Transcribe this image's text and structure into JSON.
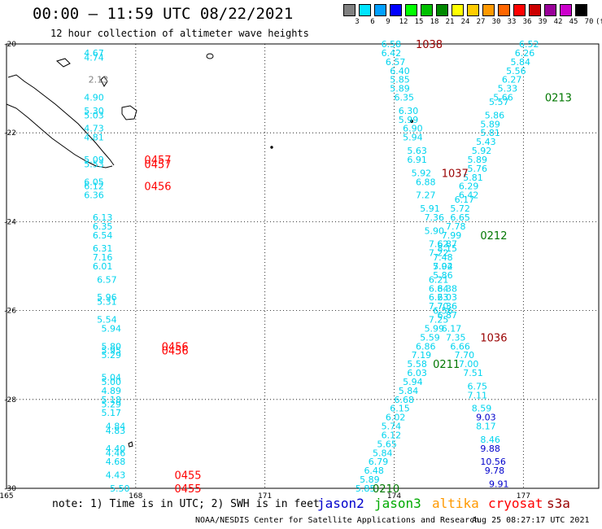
{
  "header": {
    "title": "00:00 — 11:59 UTC 08/22/2021",
    "subtitle": "12 hour collection of altimeter wave heights"
  },
  "color_scale": {
    "unit": "(ft)",
    "steps": [
      {
        "label": "3",
        "color": "#808080"
      },
      {
        "label": "6",
        "color": "#00e5ff"
      },
      {
        "label": "9",
        "color": "#00a0ff"
      },
      {
        "label": "12",
        "color": "#0000ff"
      },
      {
        "label": "15",
        "color": "#00ff00"
      },
      {
        "label": "18",
        "color": "#00c000"
      },
      {
        "label": "21",
        "color": "#008800"
      },
      {
        "label": "24",
        "color": "#ffff00"
      },
      {
        "label": "27",
        "color": "#ffcc00"
      },
      {
        "label": "30",
        "color": "#ff9900"
      },
      {
        "label": "33",
        "color": "#ff6600"
      },
      {
        "label": "36",
        "color": "#ff0000"
      },
      {
        "label": "39",
        "color": "#cc0000"
      },
      {
        "label": "42",
        "color": "#990099"
      },
      {
        "label": "45",
        "color": "#cc00cc"
      },
      {
        "label": "70",
        "color": "#000000"
      }
    ]
  },
  "map": {
    "lon_labels": [
      "165",
      "168",
      "171",
      "174",
      "177"
    ],
    "lat_labels": [
      "-20",
      "-22",
      "-24",
      "-26",
      "-28",
      "-30"
    ],
    "colors": {
      "swh_cyan": "#00d4ee",
      "swh_gray": "#808080",
      "swh_blue": "#0000cc",
      "time_red": "#ff0000",
      "time_darkred": "#990000",
      "time_green": "#007700"
    }
  },
  "swh_labels": [
    {
      "t": "4.67",
      "lon": 166.8,
      "lat": -20.2,
      "c": "cyan"
    },
    {
      "t": "4.74",
      "lon": 166.8,
      "lat": -20.3,
      "c": "cyan"
    },
    {
      "t": "2.13",
      "lon": 166.9,
      "lat": -20.8,
      "c": "gray"
    },
    {
      "t": "4.90",
      "lon": 166.8,
      "lat": -21.2,
      "c": "cyan"
    },
    {
      "t": "5.30",
      "lon": 166.8,
      "lat": -21.5,
      "c": "cyan"
    },
    {
      "t": "5.03",
      "lon": 166.8,
      "lat": -21.6,
      "c": "cyan"
    },
    {
      "t": "4.73",
      "lon": 166.8,
      "lat": -21.9,
      "c": "cyan"
    },
    {
      "t": "4.81",
      "lon": 166.8,
      "lat": -22.1,
      "c": "cyan"
    },
    {
      "t": "5.09",
      "lon": 166.8,
      "lat": -22.6,
      "c": "cyan"
    },
    {
      "t": "5.53",
      "lon": 166.8,
      "lat": -22.7,
      "c": "cyan"
    },
    {
      "t": "6.05",
      "lon": 166.8,
      "lat": -23.1,
      "c": "cyan"
    },
    {
      "t": "6.12",
      "lon": 166.8,
      "lat": -23.2,
      "c": "cyan"
    },
    {
      "t": "6.36",
      "lon": 166.8,
      "lat": -23.4,
      "c": "cyan"
    },
    {
      "t": "6.13",
      "lon": 167.0,
      "lat": -23.9,
      "c": "cyan"
    },
    {
      "t": "6.35",
      "lon": 167.0,
      "lat": -24.1,
      "c": "cyan"
    },
    {
      "t": "6.54",
      "lon": 167.0,
      "lat": -24.3,
      "c": "cyan"
    },
    {
      "t": "6.31",
      "lon": 167.0,
      "lat": -24.6,
      "c": "cyan"
    },
    {
      "t": "7.16",
      "lon": 167.0,
      "lat": -24.8,
      "c": "cyan"
    },
    {
      "t": "6.01",
      "lon": 167.0,
      "lat": -25.0,
      "c": "cyan"
    },
    {
      "t": "6.57",
      "lon": 167.1,
      "lat": -25.3,
      "c": "cyan"
    },
    {
      "t": "5.96",
      "lon": 167.1,
      "lat": -25.7,
      "c": "cyan"
    },
    {
      "t": "5.31",
      "lon": 167.1,
      "lat": -25.8,
      "c": "cyan"
    },
    {
      "t": "5.54",
      "lon": 167.1,
      "lat": -26.2,
      "c": "cyan"
    },
    {
      "t": "5.94",
      "lon": 167.2,
      "lat": -26.4,
      "c": "cyan"
    },
    {
      "t": "5.80",
      "lon": 167.2,
      "lat": -26.8,
      "c": "cyan"
    },
    {
      "t": "5.95",
      "lon": 167.2,
      "lat": -26.9,
      "c": "cyan"
    },
    {
      "t": "5.29",
      "lon": 167.2,
      "lat": -27.0,
      "c": "cyan"
    },
    {
      "t": "5.04",
      "lon": 167.2,
      "lat": -27.5,
      "c": "cyan"
    },
    {
      "t": "5.00",
      "lon": 167.2,
      "lat": -27.6,
      "c": "cyan"
    },
    {
      "t": "4.89",
      "lon": 167.2,
      "lat": -27.8,
      "c": "cyan"
    },
    {
      "t": "5.18",
      "lon": 167.2,
      "lat": -28.0,
      "c": "cyan"
    },
    {
      "t": "5.29",
      "lon": 167.2,
      "lat": -28.1,
      "c": "cyan"
    },
    {
      "t": "5.17",
      "lon": 167.2,
      "lat": -28.3,
      "c": "cyan"
    },
    {
      "t": "4.84",
      "lon": 167.3,
      "lat": -28.6,
      "c": "cyan"
    },
    {
      "t": "4.83",
      "lon": 167.3,
      "lat": -28.7,
      "c": "cyan"
    },
    {
      "t": "4.40",
      "lon": 167.3,
      "lat": -29.1,
      "c": "cyan"
    },
    {
      "t": "4.46",
      "lon": 167.3,
      "lat": -29.2,
      "c": "cyan"
    },
    {
      "t": "4.68",
      "lon": 167.3,
      "lat": -29.4,
      "c": "cyan"
    },
    {
      "t": "4.43",
      "lon": 167.3,
      "lat": -29.7,
      "c": "cyan"
    },
    {
      "t": "5.50",
      "lon": 167.4,
      "lat": -30.0,
      "c": "cyan"
    },
    {
      "t": "6.58",
      "lon": 173.7,
      "lat": -20.0,
      "c": "cyan"
    },
    {
      "t": "6.42",
      "lon": 173.7,
      "lat": -20.2,
      "c": "cyan"
    },
    {
      "t": "6.57",
      "lon": 173.8,
      "lat": -20.4,
      "c": "cyan"
    },
    {
      "t": "6.40",
      "lon": 173.9,
      "lat": -20.6,
      "c": "cyan"
    },
    {
      "t": "5.85",
      "lon": 173.9,
      "lat": -20.8,
      "c": "cyan"
    },
    {
      "t": "5.89",
      "lon": 173.9,
      "lat": -21.0,
      "c": "cyan"
    },
    {
      "t": "6.35",
      "lon": 174.0,
      "lat": -21.2,
      "c": "cyan"
    },
    {
      "t": "6.30",
      "lon": 174.1,
      "lat": -21.5,
      "c": "cyan"
    },
    {
      "t": "5.99",
      "lon": 174.1,
      "lat": -21.7,
      "c": "cyan"
    },
    {
      "t": "6.90",
      "lon": 174.2,
      "lat": -21.9,
      "c": "cyan"
    },
    {
      "t": "5.94",
      "lon": 174.2,
      "lat": -22.1,
      "c": "cyan"
    },
    {
      "t": "5.63",
      "lon": 174.3,
      "lat": -22.4,
      "c": "cyan"
    },
    {
      "t": "6.91",
      "lon": 174.3,
      "lat": -22.6,
      "c": "cyan"
    },
    {
      "t": "5.92",
      "lon": 174.4,
      "lat": -22.9,
      "c": "cyan"
    },
    {
      "t": "6.88",
      "lon": 174.5,
      "lat": -23.1,
      "c": "cyan"
    },
    {
      "t": "7.27",
      "lon": 174.5,
      "lat": -23.4,
      "c": "cyan"
    },
    {
      "t": "5.91",
      "lon": 174.6,
      "lat": -23.7,
      "c": "cyan"
    },
    {
      "t": "7.36",
      "lon": 174.7,
      "lat": -23.9,
      "c": "cyan"
    },
    {
      "t": "5.90",
      "lon": 174.7,
      "lat": -24.2,
      "c": "cyan"
    },
    {
      "t": "7.62",
      "lon": 174.8,
      "lat": -24.5,
      "c": "cyan"
    },
    {
      "t": "7.22",
      "lon": 174.8,
      "lat": -24.7,
      "c": "cyan"
    },
    {
      "t": "5.94",
      "lon": 174.9,
      "lat": -25.0,
      "c": "cyan"
    },
    {
      "t": "5.86",
      "lon": 174.9,
      "lat": -25.2,
      "c": "cyan"
    },
    {
      "t": "6.38",
      "lon": 175.0,
      "lat": -25.5,
      "c": "cyan"
    },
    {
      "t": "6.03",
      "lon": 175.0,
      "lat": -25.7,
      "c": "cyan"
    },
    {
      "t": "7.36",
      "lon": 175.0,
      "lat": -25.9,
      "c": "cyan"
    },
    {
      "t": "6.56",
      "lon": 174.9,
      "lat": -26.0,
      "c": "cyan"
    },
    {
      "t": "7.25",
      "lon": 174.8,
      "lat": -26.2,
      "c": "cyan"
    },
    {
      "t": "5.99",
      "lon": 174.7,
      "lat": -26.4,
      "c": "cyan"
    },
    {
      "t": "5.59",
      "lon": 174.6,
      "lat": -26.6,
      "c": "cyan"
    },
    {
      "t": "6.86",
      "lon": 174.5,
      "lat": -26.8,
      "c": "cyan"
    },
    {
      "t": "7.19",
      "lon": 174.4,
      "lat": -27.0,
      "c": "cyan"
    },
    {
      "t": "5.58",
      "lon": 174.3,
      "lat": -27.2,
      "c": "cyan"
    },
    {
      "t": "6.03",
      "lon": 174.3,
      "lat": -27.4,
      "c": "cyan"
    },
    {
      "t": "5.94",
      "lon": 174.2,
      "lat": -27.6,
      "c": "cyan"
    },
    {
      "t": "5.84",
      "lon": 174.1,
      "lat": -27.8,
      "c": "cyan"
    },
    {
      "t": "6.68",
      "lon": 174.0,
      "lat": -28.0,
      "c": "cyan"
    },
    {
      "t": "6.15",
      "lon": 173.9,
      "lat": -28.2,
      "c": "cyan"
    },
    {
      "t": "6.02",
      "lon": 173.8,
      "lat": -28.4,
      "c": "cyan"
    },
    {
      "t": "5.74",
      "lon": 173.7,
      "lat": -28.6,
      "c": "cyan"
    },
    {
      "t": "6.12",
      "lon": 173.7,
      "lat": -28.8,
      "c": "cyan"
    },
    {
      "t": "5.65",
      "lon": 173.6,
      "lat": -29.0,
      "c": "cyan"
    },
    {
      "t": "5.84",
      "lon": 173.5,
      "lat": -29.2,
      "c": "cyan"
    },
    {
      "t": "6.79",
      "lon": 173.4,
      "lat": -29.4,
      "c": "cyan"
    },
    {
      "t": "6.48",
      "lon": 173.3,
      "lat": -29.6,
      "c": "cyan"
    },
    {
      "t": "5.89",
      "lon": 173.2,
      "lat": -29.8,
      "c": "cyan"
    },
    {
      "t": "5.85",
      "lon": 173.1,
      "lat": -30.0,
      "c": "cyan"
    },
    {
      "t": "6.52",
      "lon": 176.9,
      "lat": -20.0,
      "c": "cyan"
    },
    {
      "t": "6.26",
      "lon": 176.8,
      "lat": -20.2,
      "c": "cyan"
    },
    {
      "t": "5.84",
      "lon": 176.7,
      "lat": -20.4,
      "c": "cyan"
    },
    {
      "t": "5.56",
      "lon": 176.6,
      "lat": -20.6,
      "c": "cyan"
    },
    {
      "t": "6.27",
      "lon": 176.5,
      "lat": -20.8,
      "c": "cyan"
    },
    {
      "t": "5.33",
      "lon": 176.4,
      "lat": -21.0,
      "c": "cyan"
    },
    {
      "t": "5.66",
      "lon": 176.3,
      "lat": -21.2,
      "c": "cyan"
    },
    {
      "t": "5.57",
      "lon": 176.2,
      "lat": -21.3,
      "c": "cyan"
    },
    {
      "t": "5.86",
      "lon": 176.1,
      "lat": -21.6,
      "c": "cyan"
    },
    {
      "t": "5.89",
      "lon": 176.0,
      "lat": -21.8,
      "c": "cyan"
    },
    {
      "t": "5.81",
      "lon": 176.0,
      "lat": -22.0,
      "c": "cyan"
    },
    {
      "t": "5.43",
      "lon": 175.9,
      "lat": -22.2,
      "c": "cyan"
    },
    {
      "t": "5.92",
      "lon": 175.8,
      "lat": -22.4,
      "c": "cyan"
    },
    {
      "t": "5.89",
      "lon": 175.7,
      "lat": -22.6,
      "c": "cyan"
    },
    {
      "t": "5.76",
      "lon": 175.7,
      "lat": -22.8,
      "c": "cyan"
    },
    {
      "t": "5.81",
      "lon": 175.6,
      "lat": -23.0,
      "c": "cyan"
    },
    {
      "t": "6.29",
      "lon": 175.5,
      "lat": -23.2,
      "c": "cyan"
    },
    {
      "t": "6.42",
      "lon": 175.5,
      "lat": -23.4,
      "c": "cyan"
    },
    {
      "t": "6.17",
      "lon": 175.4,
      "lat": -23.5,
      "c": "cyan"
    },
    {
      "t": "5.72",
      "lon": 175.3,
      "lat": -23.7,
      "c": "cyan"
    },
    {
      "t": "6.65",
      "lon": 175.3,
      "lat": -23.9,
      "c": "cyan"
    },
    {
      "t": "7.78",
      "lon": 175.2,
      "lat": -24.1,
      "c": "cyan"
    },
    {
      "t": "7.99",
      "lon": 175.1,
      "lat": -24.3,
      "c": "cyan"
    },
    {
      "t": "6.87",
      "lon": 175.0,
      "lat": -24.5,
      "c": "cyan"
    },
    {
      "t": "8.15",
      "lon": 175.0,
      "lat": -24.6,
      "c": "cyan"
    },
    {
      "t": "7.48",
      "lon": 174.9,
      "lat": -24.8,
      "c": "cyan"
    },
    {
      "t": "7.02",
      "lon": 174.9,
      "lat": -25.0,
      "c": "cyan"
    },
    {
      "t": "6.21",
      "lon": 174.8,
      "lat": -25.3,
      "c": "cyan"
    },
    {
      "t": "6.84",
      "lon": 174.8,
      "lat": -25.5,
      "c": "cyan"
    },
    {
      "t": "6.23",
      "lon": 174.8,
      "lat": -25.7,
      "c": "cyan"
    },
    {
      "t": "7.70",
      "lon": 174.8,
      "lat": -25.9,
      "c": "cyan"
    },
    {
      "t": "6.87",
      "lon": 175.0,
      "lat": -26.1,
      "c": "cyan"
    },
    {
      "t": "6.17",
      "lon": 175.1,
      "lat": -26.4,
      "c": "cyan"
    },
    {
      "t": "7.35",
      "lon": 175.2,
      "lat": -26.6,
      "c": "cyan"
    },
    {
      "t": "6.66",
      "lon": 175.3,
      "lat": -26.8,
      "c": "cyan"
    },
    {
      "t": "7.70",
      "lon": 175.4,
      "lat": -27.0,
      "c": "cyan"
    },
    {
      "t": "7.00",
      "lon": 175.5,
      "lat": -27.2,
      "c": "cyan"
    },
    {
      "t": "7.51",
      "lon": 175.6,
      "lat": -27.4,
      "c": "cyan"
    },
    {
      "t": "6.75",
      "lon": 175.7,
      "lat": -27.7,
      "c": "cyan"
    },
    {
      "t": "7.11",
      "lon": 175.7,
      "lat": -27.9,
      "c": "cyan"
    },
    {
      "t": "8.59",
      "lon": 175.8,
      "lat": -28.2,
      "c": "cyan"
    },
    {
      "t": "9.03",
      "lon": 175.9,
      "lat": -28.4,
      "c": "blue"
    },
    {
      "t": "8.17",
      "lon": 175.9,
      "lat": -28.6,
      "c": "cyan"
    },
    {
      "t": "8.46",
      "lon": 176.0,
      "lat": -28.9,
      "c": "cyan"
    },
    {
      "t": "9.88",
      "lon": 176.0,
      "lat": -29.1,
      "c": "blue"
    },
    {
      "t": "10.56",
      "lon": 176.0,
      "lat": -29.4,
      "c": "blue"
    },
    {
      "t": "9.78",
      "lon": 176.1,
      "lat": -29.6,
      "c": "blue"
    },
    {
      "t": "9.91",
      "lon": 176.2,
      "lat": -29.9,
      "c": "blue"
    }
  ],
  "time_labels": [
    {
      "t": "0457",
      "lon": 168.2,
      "lat": -22.6,
      "c": "red"
    },
    {
      "t": "0457",
      "lon": 168.2,
      "lat": -22.7,
      "c": "red"
    },
    {
      "t": "0456",
      "lon": 168.2,
      "lat": -23.2,
      "c": "red"
    },
    {
      "t": "0456",
      "lon": 168.6,
      "lat": -26.8,
      "c": "red"
    },
    {
      "t": "0456",
      "lon": 168.6,
      "lat": -26.9,
      "c": "red"
    },
    {
      "t": "0455",
      "lon": 168.9,
      "lat": -29.7,
      "c": "red"
    },
    {
      "t": "0455",
      "lon": 168.9,
      "lat": -30.0,
      "c": "red"
    },
    {
      "t": "1038",
      "lon": 174.5,
      "lat": -20.0,
      "c": "darkred"
    },
    {
      "t": "1037",
      "lon": 175.1,
      "lat": -22.9,
      "c": "darkred"
    },
    {
      "t": "1036",
      "lon": 176.0,
      "lat": -26.6,
      "c": "darkred"
    },
    {
      "t": "0213",
      "lon": 177.5,
      "lat": -21.2,
      "c": "green"
    },
    {
      "t": "0212",
      "lon": 176.0,
      "lat": -24.3,
      "c": "green"
    },
    {
      "t": "0211",
      "lon": 174.9,
      "lat": -27.2,
      "c": "green"
    },
    {
      "t": "0210",
      "lon": 173.5,
      "lat": -30.0,
      "c": "green"
    }
  ],
  "footer": {
    "note": "note: 1) Time is in UTC; 2) SWH is in feet",
    "missions": [
      {
        "name": "jason2",
        "color": "#0000cc"
      },
      {
        "name": "jason3",
        "color": "#00aa00"
      },
      {
        "name": "altika",
        "color": "#ff9900"
      },
      {
        "name": "cryosat",
        "color": "#ff0000"
      },
      {
        "name": "s3a",
        "color": "#990000"
      }
    ],
    "credit": "NOAA/NESDIS Center for Satellite Applications and Research",
    "timestamp": "Aug 25 08:27:17 UTC 2021"
  }
}
